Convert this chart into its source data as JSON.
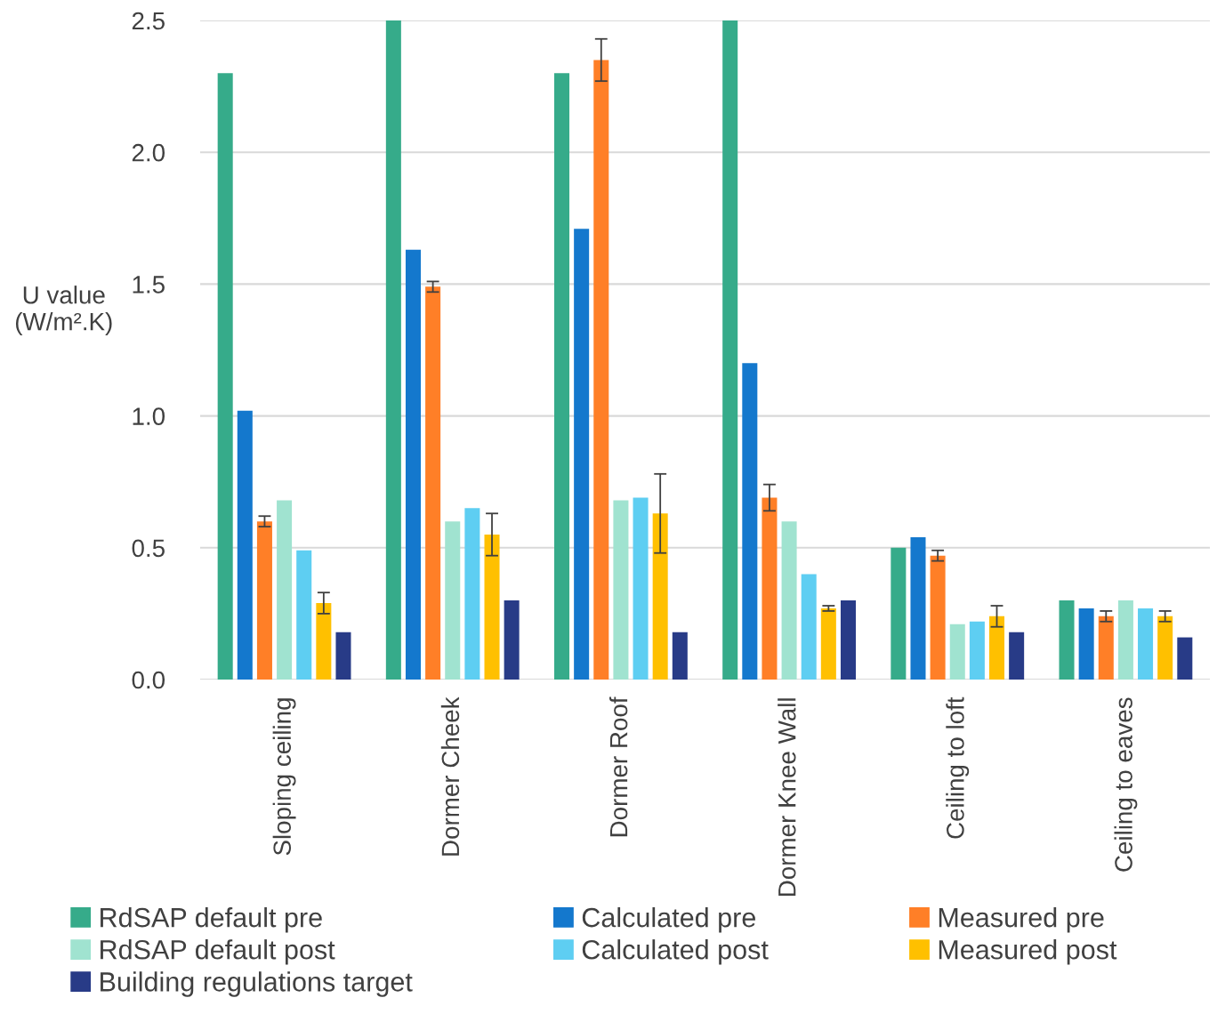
{
  "chart_data": {
    "type": "bar",
    "ylabel": "U value\n(W/m².K)",
    "categories": [
      "Sloping ceiling",
      "Dormer Cheek",
      "Dormer Roof",
      "Dormer Knee Wall",
      "Ceiling to loft",
      "Ceiling to eaves"
    ],
    "series": [
      {
        "name": "RdSAP default pre",
        "color": "#36ab8a",
        "values": [
          2.3,
          2.5,
          2.3,
          2.5,
          0.5,
          0.3
        ]
      },
      {
        "name": "Calculated pre",
        "color": "#1478cd",
        "values": [
          1.02,
          1.63,
          1.71,
          1.2,
          0.54,
          0.27
        ]
      },
      {
        "name": "Measured pre",
        "color": "#ff7f27",
        "values": [
          0.6,
          1.49,
          2.35,
          0.69,
          0.47,
          0.24
        ],
        "errors": [
          0.02,
          0.02,
          0.08,
          0.05,
          0.02,
          0.02
        ]
      },
      {
        "name": "RdSAP default post",
        "color": "#a0e3d0",
        "values": [
          0.68,
          0.6,
          0.68,
          0.6,
          0.21,
          0.3
        ]
      },
      {
        "name": "Calculated post",
        "color": "#5ecef2",
        "values": [
          0.49,
          0.65,
          0.69,
          0.4,
          0.22,
          0.27
        ]
      },
      {
        "name": "Measured post",
        "color": "#ffc000",
        "values": [
          0.29,
          0.55,
          0.63,
          0.27,
          0.24,
          0.24
        ],
        "errors": [
          0.04,
          0.08,
          0.15,
          0.01,
          0.04,
          0.02
        ]
      },
      {
        "name": "Building regulations target",
        "color": "#283b87",
        "values": [
          0.18,
          0.3,
          0.18,
          0.3,
          0.18,
          0.16
        ]
      }
    ],
    "ylim": [
      0,
      2.5
    ],
    "yticks": [
      {
        "value": 0,
        "label": "0.0"
      },
      {
        "value": 0.5,
        "label": "0.5"
      },
      {
        "value": 1,
        "label": "1.0"
      },
      {
        "value": 1.5,
        "label": "1.5"
      },
      {
        "value": 2,
        "label": "2.0"
      },
      {
        "value": 2.5,
        "label": "2.5"
      }
    ],
    "grid": "y",
    "legend": "bottom"
  }
}
